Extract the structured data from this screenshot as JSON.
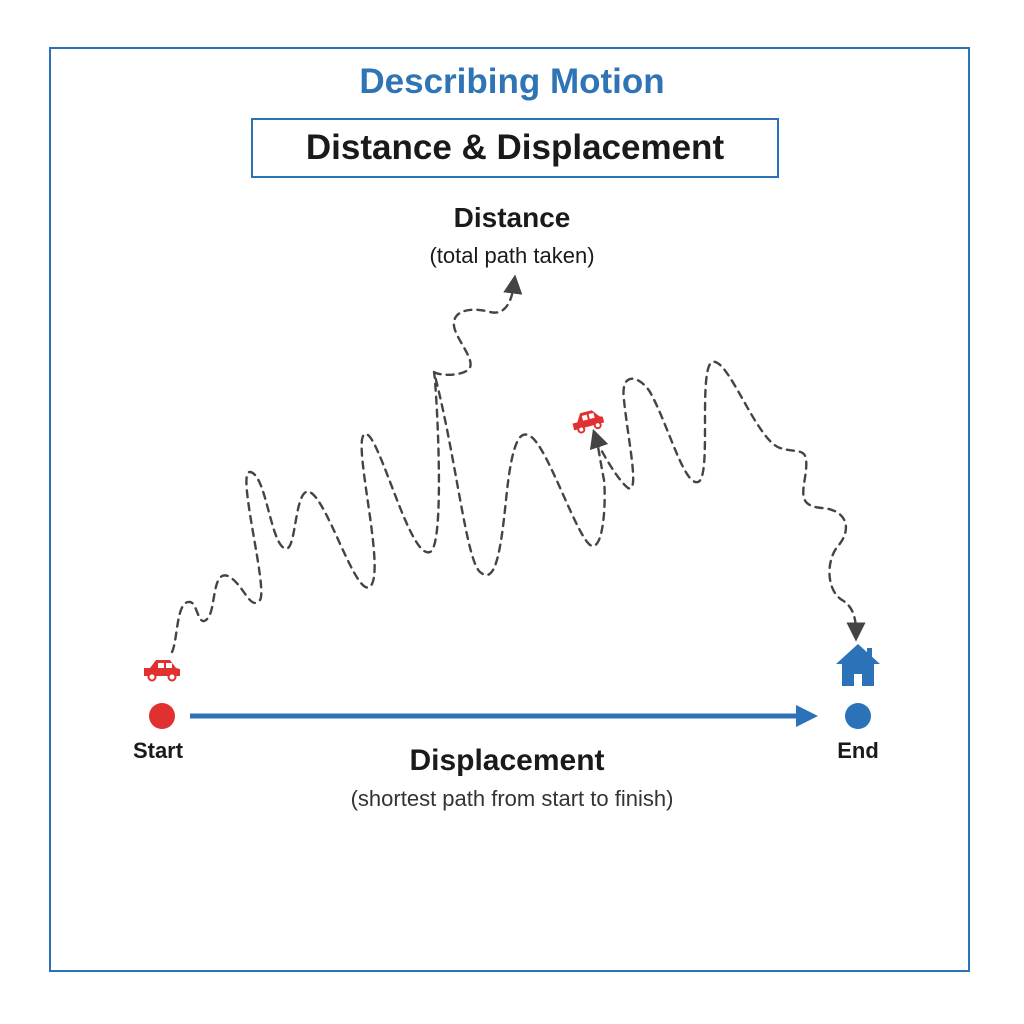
{
  "title": "Describing Motion",
  "subtitle": "Distance & Displacement",
  "distance": {
    "label": "Distance",
    "sublabel": "(total path taken)"
  },
  "displacement": {
    "label": "Displacement",
    "sublabel": "(shortest path from start to finish)"
  },
  "start": {
    "label": "Start",
    "color": "#e03030"
  },
  "end": {
    "label": "End",
    "color": "#2b72b8"
  },
  "icons": {
    "car": "car-icon",
    "home": "house-icon"
  },
  "colors": {
    "accent": "#2f74b5",
    "car": "#e03030",
    "path": "#444444"
  }
}
